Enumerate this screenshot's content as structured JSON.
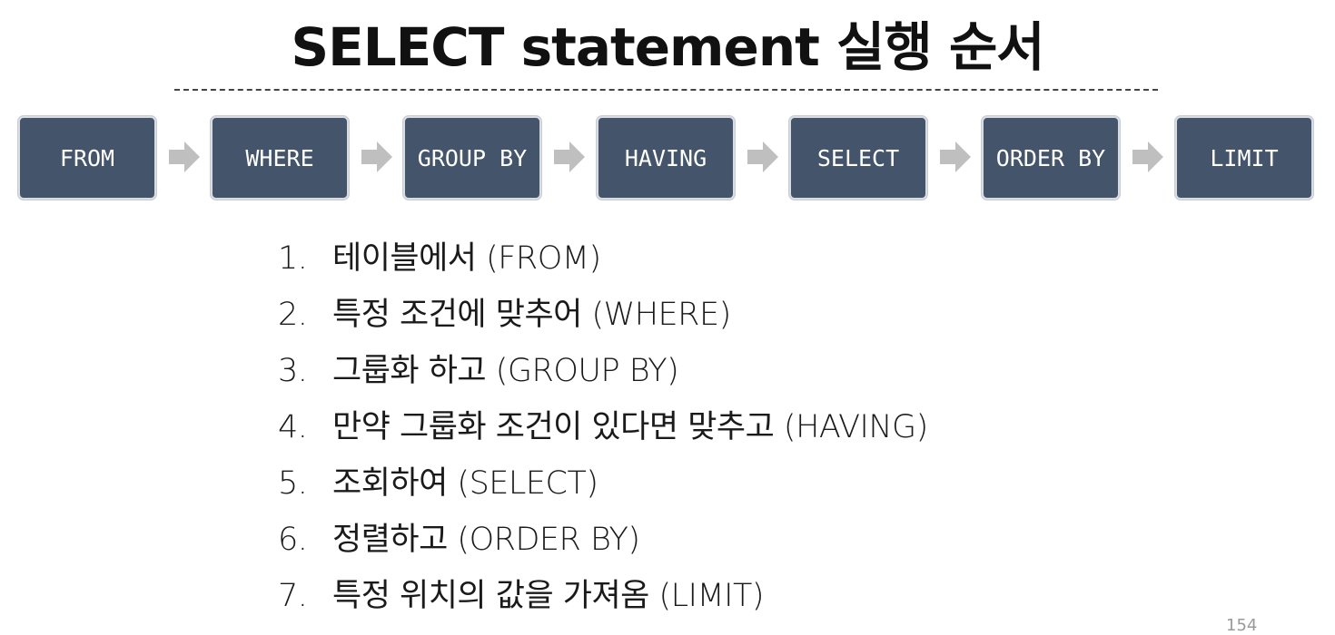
{
  "title": "SELECT statement 실행 순서",
  "flow": {
    "box_color": "#44546a",
    "arrow_color": "#bfbfbf",
    "steps": [
      "FROM",
      "WHERE",
      "GROUP BY",
      "HAVING",
      "SELECT",
      "ORDER BY",
      "LIMIT"
    ]
  },
  "list": [
    {
      "num": "1.",
      "text": "테이블에서 (FROM)"
    },
    {
      "num": "2.",
      "text": "특정 조건에 맞추어 (WHERE)"
    },
    {
      "num": "3.",
      "text": "그룹화 하고 (GROUP BY)"
    },
    {
      "num": "4.",
      "text": "만약 그룹화 조건이 있다면 맞추고 (HAVING)"
    },
    {
      "num": "5.",
      "text": "조회하여 (SELECT)"
    },
    {
      "num": "6.",
      "text": "정렬하고 (ORDER BY)"
    },
    {
      "num": "7.",
      "text": "특정 위치의 값을 가져옴 (LIMIT)"
    }
  ],
  "page_number": "154"
}
